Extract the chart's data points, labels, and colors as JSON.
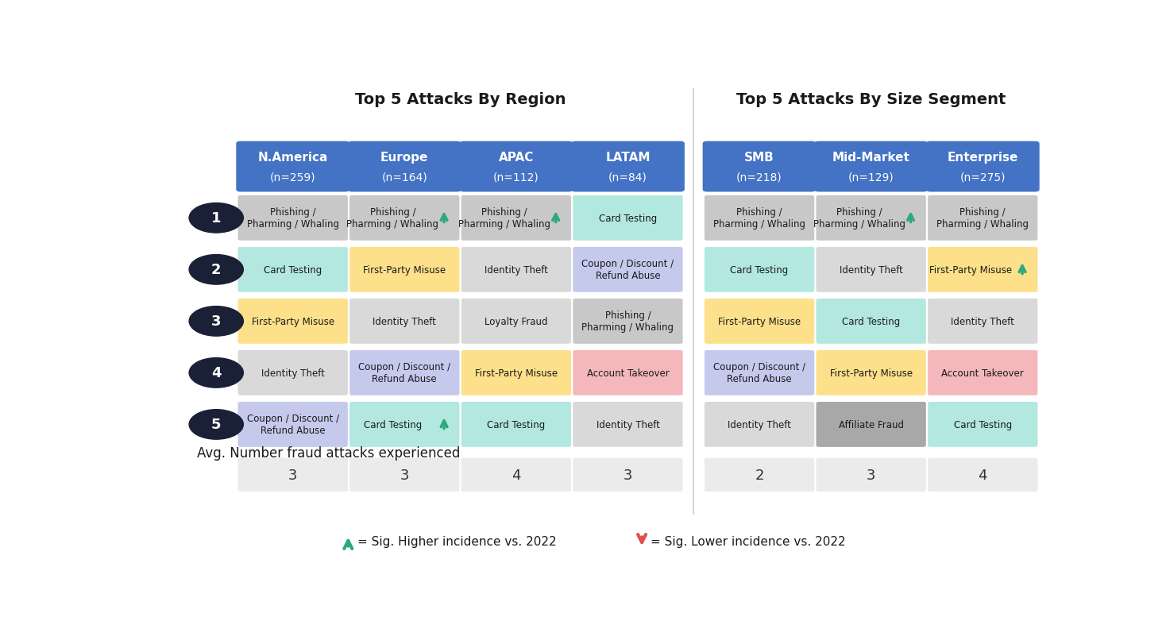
{
  "title_left": "Top 5 Attacks By Region",
  "title_right": "Top 5 Attacks By Size Segment",
  "col_short": [
    "N.America",
    "Europe",
    "APAC",
    "LATAM",
    "SMB",
    "Mid-Market",
    "Enterprise"
  ],
  "col_sub": [
    "(n=259)",
    "(n=164)",
    "(n=112)",
    "(n=84)",
    "(n=218)",
    "(n=129)",
    "(n=275)"
  ],
  "avg_attacks": [
    3,
    3,
    4,
    3,
    2,
    3,
    4
  ],
  "rows": [
    {
      "rank": "1",
      "cells": [
        {
          "text": "Phishing /\nPharming / Whaling",
          "color": "#c8c8c8",
          "arrow": null
        },
        {
          "text": "Phishing /\nPharming / Whaling",
          "color": "#c8c8c8",
          "arrow": "up"
        },
        {
          "text": "Phishing /\nPharming / Whaling",
          "color": "#c8c8c8",
          "arrow": "up"
        },
        {
          "text": "Card Testing",
          "color": "#b2e8df",
          "arrow": null
        },
        {
          "text": "Phishing /\nPharming / Whaling",
          "color": "#c8c8c8",
          "arrow": null
        },
        {
          "text": "Phishing /\nPharming / Whaling",
          "color": "#c8c8c8",
          "arrow": "up"
        },
        {
          "text": "Phishing /\nPharming / Whaling",
          "color": "#c8c8c8",
          "arrow": null
        }
      ]
    },
    {
      "rank": "2",
      "cells": [
        {
          "text": "Card Testing",
          "color": "#b2e8df",
          "arrow": null
        },
        {
          "text": "First-Party Misuse",
          "color": "#fce08a",
          "arrow": null
        },
        {
          "text": "Identity Theft",
          "color": "#d9d9d9",
          "arrow": null
        },
        {
          "text": "Coupon / Discount /\nRefund Abuse",
          "color": "#c5caed",
          "arrow": null
        },
        {
          "text": "Card Testing",
          "color": "#b2e8df",
          "arrow": null
        },
        {
          "text": "Identity Theft",
          "color": "#d9d9d9",
          "arrow": null
        },
        {
          "text": "First-Party Misuse",
          "color": "#fce08a",
          "arrow": "up"
        }
      ]
    },
    {
      "rank": "3",
      "cells": [
        {
          "text": "First-Party Misuse",
          "color": "#fce08a",
          "arrow": null
        },
        {
          "text": "Identity Theft",
          "color": "#d9d9d9",
          "arrow": null
        },
        {
          "text": "Loyalty Fraud",
          "color": "#d9d9d9",
          "arrow": null
        },
        {
          "text": "Phishing /\nPharming / Whaling",
          "color": "#c8c8c8",
          "arrow": null
        },
        {
          "text": "First-Party Misuse",
          "color": "#fce08a",
          "arrow": null
        },
        {
          "text": "Card Testing",
          "color": "#b2e8df",
          "arrow": null
        },
        {
          "text": "Identity Theft",
          "color": "#d9d9d9",
          "arrow": null
        }
      ]
    },
    {
      "rank": "4",
      "cells": [
        {
          "text": "Identity Theft",
          "color": "#d9d9d9",
          "arrow": null
        },
        {
          "text": "Coupon / Discount /\nRefund Abuse",
          "color": "#c5caed",
          "arrow": null
        },
        {
          "text": "First-Party Misuse",
          "color": "#fce08a",
          "arrow": null
        },
        {
          "text": "Account Takeover",
          "color": "#f4b8bc",
          "arrow": null
        },
        {
          "text": "Coupon / Discount /\nRefund Abuse",
          "color": "#c5caed",
          "arrow": null
        },
        {
          "text": "First-Party Misuse",
          "color": "#fce08a",
          "arrow": null
        },
        {
          "text": "Account Takeover",
          "color": "#f4b8bc",
          "arrow": null
        }
      ]
    },
    {
      "rank": "5",
      "cells": [
        {
          "text": "Coupon / Discount /\nRefund Abuse",
          "color": "#c5caed",
          "arrow": null
        },
        {
          "text": "Card Testing",
          "color": "#b2e8df",
          "arrow": "up"
        },
        {
          "text": "Card Testing",
          "color": "#b2e8df",
          "arrow": null
        },
        {
          "text": "Identity Theft",
          "color": "#d9d9d9",
          "arrow": null
        },
        {
          "text": "Identity Theft",
          "color": "#d9d9d9",
          "arrow": null
        },
        {
          "text": "Affiliate Fraud",
          "color": "#a8a8a8",
          "arrow": null
        },
        {
          "text": "Card Testing",
          "color": "#b2e8df",
          "arrow": null
        }
      ]
    }
  ],
  "header_color": "#4472c4",
  "header_text_color": "#ffffff",
  "rank_circle_color": "#1a2035",
  "rank_text_color": "#ffffff",
  "bg_color": "#ffffff",
  "avg_box_color": "#ebebeb",
  "arrow_up_color": "#2ea87e",
  "arrow_down_color": "#e05050",
  "legend_up_text": "= Sig. Higher incidence vs. 2022",
  "legend_down_text": "= Sig. Lower incidence vs. 2022",
  "avg_label": "Avg. Number fraud attacks experienced"
}
